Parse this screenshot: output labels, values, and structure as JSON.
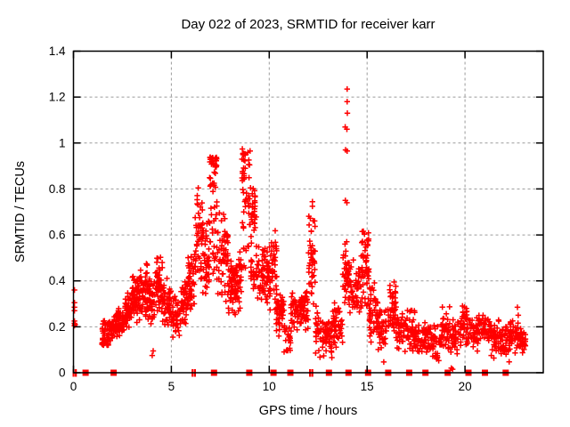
{
  "chart_data": {
    "type": "scatter",
    "title": "Day 022 of 2023, SRMTID for receiver karr",
    "xlabel": "GPS time / hours",
    "ylabel": "SRMTID / TECUs",
    "xlim": [
      0,
      24
    ],
    "ylim": [
      0,
      1.4
    ],
    "xticks": [
      0,
      5,
      10,
      15,
      20
    ],
    "xtick_labels": [
      "0",
      "5",
      "10",
      "15",
      "20"
    ],
    "yticks": [
      0,
      0.2,
      0.4,
      0.6,
      0.8,
      1.0,
      1.2,
      1.4
    ],
    "ytick_labels": [
      "0",
      "0.2",
      "0.4",
      "0.6",
      "0.8",
      "1",
      "1.2",
      "1.4"
    ],
    "grid": true,
    "legend": "none",
    "marker": "plus",
    "colors": {
      "points": "#ff0000",
      "grid": "#9b9b9b",
      "axis": "#000000",
      "background": "#ffffff",
      "text": "#000000"
    },
    "points": [
      [
        0.05,
        0.36
      ],
      [
        0.05,
        0.305
      ],
      [
        0.05,
        0.285
      ],
      [
        0.05,
        0.27
      ],
      [
        0.05,
        0.225
      ],
      [
        0.05,
        0.215
      ],
      [
        0.05,
        0.205
      ],
      [
        0.08,
        0.21
      ],
      [
        13.88,
        1.07
      ],
      [
        13.9,
        0.97
      ],
      [
        13.89,
        0.75
      ],
      [
        13.87,
        0.56
      ],
      [
        13.98,
        1.235
      ],
      [
        13.98,
        1.18
      ],
      [
        13.99,
        1.13
      ],
      [
        13.97,
        1.06
      ],
      [
        13.98,
        0.965
      ],
      [
        13.97,
        0.74
      ],
      [
        13.96,
        0.57
      ],
      [
        22.68,
        0.285
      ],
      [
        22.72,
        0.25
      ],
      [
        13.2,
        0.066
      ],
      [
        15.85,
        0.047
      ],
      [
        19.3,
        0.02
      ],
      [
        19.37,
        0.015
      ],
      [
        4.02,
        0.075
      ],
      [
        4.07,
        0.095
      ]
    ],
    "clusters_key": "[x_start,x_end,y_min,y_max,count,density_bias(l|m|h)]",
    "clusters": [
      [
        1.45,
        1.8,
        0.12,
        0.23,
        45,
        "l"
      ],
      [
        1.8,
        2.2,
        0.13,
        0.26,
        50,
        "m"
      ],
      [
        2.2,
        2.6,
        0.14,
        0.3,
        45,
        "m"
      ],
      [
        2.6,
        3.0,
        0.17,
        0.38,
        50,
        "m"
      ],
      [
        3.0,
        3.4,
        0.2,
        0.45,
        55,
        "m"
      ],
      [
        3.4,
        3.8,
        0.22,
        0.49,
        55,
        "m"
      ],
      [
        3.8,
        4.1,
        0.18,
        0.42,
        40,
        "m"
      ],
      [
        4.1,
        4.55,
        0.22,
        0.52,
        55,
        "m"
      ],
      [
        4.55,
        5.0,
        0.18,
        0.42,
        45,
        "m"
      ],
      [
        5.0,
        5.45,
        0.15,
        0.35,
        40,
        "m"
      ],
      [
        5.45,
        5.85,
        0.18,
        0.42,
        45,
        "m"
      ],
      [
        5.85,
        6.2,
        0.25,
        0.55,
        50,
        "m"
      ],
      [
        6.2,
        6.6,
        0.35,
        0.84,
        45,
        "m"
      ],
      [
        6.6,
        6.95,
        0.3,
        0.7,
        45,
        "m"
      ],
      [
        6.95,
        7.35,
        0.4,
        0.94,
        60,
        "h"
      ],
      [
        7.35,
        7.9,
        0.25,
        0.75,
        55,
        "m"
      ],
      [
        7.9,
        8.3,
        0.22,
        0.5,
        50,
        "m"
      ],
      [
        8.3,
        8.6,
        0.25,
        0.55,
        35,
        "m"
      ],
      [
        8.6,
        9.05,
        0.45,
        0.975,
        55,
        "h"
      ],
      [
        9.05,
        9.35,
        0.55,
        0.82,
        30,
        "m"
      ],
      [
        9.05,
        9.5,
        0.3,
        0.58,
        30,
        "m"
      ],
      [
        9.5,
        10.0,
        0.28,
        0.58,
        55,
        "m"
      ],
      [
        10.0,
        10.4,
        0.25,
        0.63,
        45,
        "m"
      ],
      [
        10.35,
        10.75,
        0.14,
        0.38,
        45,
        "m"
      ],
      [
        10.75,
        11.1,
        0.07,
        0.22,
        25,
        "m"
      ],
      [
        11.1,
        11.65,
        0.17,
        0.36,
        50,
        "m"
      ],
      [
        11.65,
        12.0,
        0.18,
        0.4,
        40,
        "m"
      ],
      [
        12.0,
        12.35,
        0.25,
        0.78,
        45,
        "m"
      ],
      [
        12.35,
        12.75,
        0.06,
        0.3,
        35,
        "m"
      ],
      [
        12.75,
        13.2,
        0.06,
        0.25,
        45,
        "m"
      ],
      [
        13.2,
        13.75,
        0.1,
        0.32,
        50,
        "m"
      ],
      [
        13.75,
        14.1,
        0.28,
        0.55,
        40,
        "m"
      ],
      [
        14.1,
        14.65,
        0.22,
        0.5,
        45,
        "m"
      ],
      [
        14.65,
        15.1,
        0.25,
        0.655,
        55,
        "m"
      ],
      [
        15.1,
        15.55,
        0.12,
        0.42,
        45,
        "m"
      ],
      [
        15.55,
        16.0,
        0.07,
        0.3,
        40,
        "m"
      ],
      [
        16.05,
        16.5,
        0.12,
        0.43,
        50,
        "m"
      ],
      [
        16.5,
        16.9,
        0.1,
        0.3,
        35,
        "m"
      ],
      [
        16.9,
        17.5,
        0.08,
        0.28,
        50,
        "m"
      ],
      [
        17.5,
        18.2,
        0.07,
        0.23,
        50,
        "m"
      ],
      [
        18.2,
        18.8,
        0.05,
        0.22,
        45,
        "m"
      ],
      [
        18.8,
        19.25,
        0.08,
        0.3,
        40,
        "m"
      ],
      [
        19.25,
        19.8,
        0.05,
        0.25,
        40,
        "m"
      ],
      [
        19.8,
        20.1,
        0.12,
        0.32,
        30,
        "m"
      ],
      [
        20.1,
        20.7,
        0.08,
        0.26,
        45,
        "m"
      ],
      [
        20.7,
        21.3,
        0.1,
        0.28,
        45,
        "m"
      ],
      [
        21.3,
        21.8,
        0.06,
        0.25,
        45,
        "m"
      ],
      [
        21.8,
        22.3,
        0.035,
        0.22,
        45,
        "m"
      ],
      [
        22.3,
        22.75,
        0.08,
        0.25,
        40,
        "m"
      ],
      [
        22.75,
        23.1,
        0.08,
        0.2,
        30,
        "m"
      ]
    ],
    "zero_flag_squares": [
      0.62,
      2.05,
      7.18,
      8.98,
      10.22,
      11.08,
      13.05,
      14.05,
      15.05,
      16.08,
      17.15,
      17.98,
      19.12,
      20.18,
      21.02,
      22.08
    ],
    "zero_flag_ticks": [
      0.0,
      0.12,
      6.08,
      6.2,
      12.08,
      12.2
    ]
  }
}
